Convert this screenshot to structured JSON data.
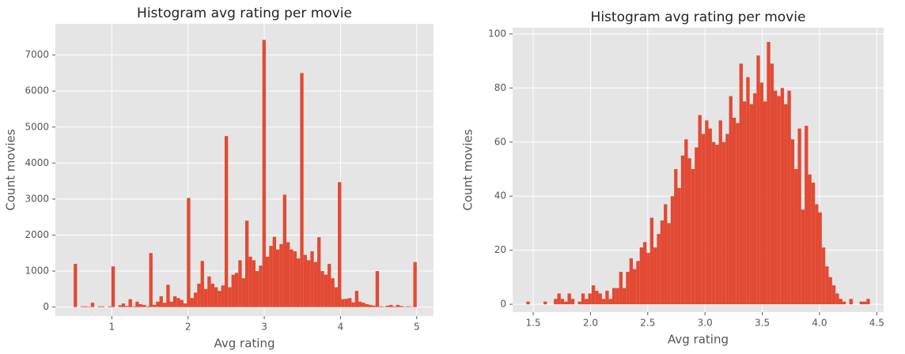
{
  "chart_data": [
    {
      "type": "histogram",
      "title": "Histogram avg rating per movie",
      "xlabel": "Avg rating",
      "ylabel": "Count movies",
      "color": "#e24a33",
      "grid": true,
      "xlim": [
        0.26,
        5.22
      ],
      "ylim": [
        -250,
        7870
      ],
      "xticks": [
        1,
        2,
        3,
        4,
        5
      ],
      "yticks": [
        0,
        1000,
        2000,
        3000,
        4000,
        5000,
        6000,
        7000
      ],
      "bins": [
        0.5,
        0.545,
        0.59,
        0.635,
        0.68,
        0.725,
        0.77,
        0.815,
        0.86,
        0.905,
        0.95,
        0.995,
        1.04,
        1.085,
        1.13,
        1.175,
        1.22,
        1.265,
        1.31,
        1.355,
        1.4,
        1.445,
        1.49,
        1.535,
        1.58,
        1.625,
        1.67,
        1.715,
        1.76,
        1.805,
        1.85,
        1.895,
        1.94,
        1.985,
        2.03,
        2.075,
        2.12,
        2.165,
        2.21,
        2.255,
        2.3,
        2.345,
        2.39,
        2.435,
        2.48,
        2.525,
        2.57,
        2.615,
        2.66,
        2.705,
        2.75,
        2.795,
        2.84,
        2.885,
        2.93,
        2.975,
        3.02,
        3.065,
        3.11,
        3.155,
        3.2,
        3.245,
        3.29,
        3.335,
        3.38,
        3.425,
        3.47,
        3.515,
        3.56,
        3.605,
        3.65,
        3.695,
        3.74,
        3.785,
        3.83,
        3.875,
        3.92,
        3.965,
        4.01,
        4.055,
        4.1,
        4.145,
        4.19,
        4.235,
        4.28,
        4.325,
        4.37,
        4.415,
        4.46,
        4.505,
        4.55,
        4.595,
        4.64,
        4.685,
        4.73,
        4.775,
        4.82,
        4.865,
        4.91,
        4.955,
        5.0
      ],
      "counts": [
        1200,
        0,
        20,
        20,
        10,
        120,
        0,
        20,
        20,
        0,
        20,
        1130,
        0,
        50,
        100,
        30,
        220,
        20,
        150,
        80,
        60,
        20,
        1500,
        60,
        150,
        300,
        120,
        620,
        150,
        300,
        250,
        200,
        100,
        3030,
        250,
        400,
        650,
        1280,
        500,
        850,
        650,
        550,
        450,
        600,
        4750,
        550,
        900,
        950,
        1300,
        800,
        2400,
        1400,
        1300,
        1000,
        1150,
        7420,
        1400,
        1700,
        1950,
        1600,
        1750,
        3120,
        1800,
        1600,
        1550,
        1350,
        6500,
        1450,
        1300,
        1550,
        1250,
        1940,
        1000,
        900,
        1200,
        800,
        550,
        3470,
        220,
        230,
        250,
        130,
        450,
        150,
        120,
        80,
        60,
        40,
        1000,
        20,
        10,
        40,
        60,
        20,
        60,
        30,
        10,
        20,
        10,
        1250
      ]
    },
    {
      "type": "histogram",
      "title": "Histogram avg rating per movie",
      "xlabel": "Avg rating",
      "ylabel": "Count movies",
      "color": "#e24a33",
      "grid": true,
      "xlim": [
        1.32,
        4.56
      ],
      "ylim": [
        -2.9,
        102.3
      ],
      "xticks": [
        1.5,
        {
          "value": 2,
          "label": "2.0"
        },
        2.5,
        {
          "value": 3,
          "label": "3.0"
        },
        3.5,
        {
          "value": 4,
          "label": "4.0"
        },
        4.5
      ],
      "yticks": [
        0,
        20,
        40,
        60,
        80,
        100
      ],
      "bins": [
        1.44,
        1.47,
        1.5,
        1.53,
        1.56,
        1.59,
        1.62,
        1.65,
        1.68,
        1.71,
        1.74,
        1.77,
        1.8,
        1.83,
        1.86,
        1.89,
        1.92,
        1.95,
        1.98,
        2.01,
        2.04,
        2.07,
        2.1,
        2.13,
        2.16,
        2.19,
        2.22,
        2.25,
        2.28,
        2.31,
        2.34,
        2.37,
        2.4,
        2.43,
        2.46,
        2.49,
        2.52,
        2.55,
        2.58,
        2.61,
        2.64,
        2.67,
        2.7,
        2.73,
        2.76,
        2.79,
        2.82,
        2.85,
        2.88,
        2.91,
        2.94,
        2.97,
        3.0,
        3.03,
        3.06,
        3.09,
        3.12,
        3.15,
        3.18,
        3.21,
        3.24,
        3.27,
        3.3,
        3.33,
        3.36,
        3.39,
        3.42,
        3.45,
        3.48,
        3.51,
        3.54,
        3.57,
        3.6,
        3.63,
        3.66,
        3.69,
        3.72,
        3.75,
        3.78,
        3.81,
        3.84,
        3.87,
        3.9,
        3.93,
        3.96,
        3.99,
        4.02,
        4.05,
        4.08,
        4.11,
        4.14,
        4.17,
        4.2,
        4.23,
        4.26,
        4.29,
        4.32,
        4.35,
        4.38,
        4.41,
        4.44
      ],
      "counts": [
        1,
        0,
        0,
        0,
        0,
        1,
        0,
        0,
        2,
        4,
        2,
        1,
        4,
        2,
        0,
        1,
        4,
        2,
        4,
        7,
        5,
        4,
        2,
        5,
        2,
        6,
        6,
        12,
        6,
        12,
        17,
        13,
        16,
        21,
        23,
        19,
        32,
        21,
        26,
        31,
        37,
        30,
        40,
        50,
        43,
        55,
        61,
        54,
        50,
        58,
        70,
        63,
        68,
        65,
        60,
        59,
        68,
        60,
        63,
        77,
        69,
        67,
        89,
        75,
        84,
        74,
        78,
        92,
        82,
        75,
        97,
        89,
        79,
        77,
        80,
        74,
        79,
        61,
        50,
        65,
        35,
        66,
        48,
        45,
        37,
        34,
        21,
        14,
        10,
        7,
        4,
        2,
        1,
        0,
        2,
        0,
        0,
        1,
        1,
        2
      ]
    }
  ]
}
